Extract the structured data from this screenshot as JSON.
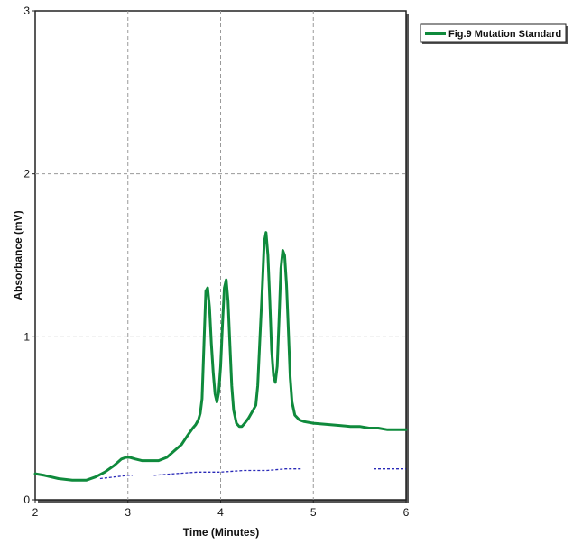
{
  "chart_data": {
    "type": "line",
    "title": "",
    "xlabel": "Time (Minutes)",
    "ylabel": "Absorbance (mV)",
    "xlim": [
      2,
      6
    ],
    "ylim": [
      0,
      3
    ],
    "x_ticks": [
      {
        "value": 2,
        "label": "2"
      },
      {
        "value": 3,
        "label": "3"
      },
      {
        "value": 4,
        "label": "4"
      },
      {
        "value": 5,
        "label": "5"
      },
      {
        "value": 6,
        "label": "6"
      }
    ],
    "y_ticks": [
      {
        "value": 0,
        "label": "0"
      },
      {
        "value": 1,
        "label": "1"
      },
      {
        "value": 2,
        "label": "2"
      },
      {
        "value": 3,
        "label": "3"
      }
    ],
    "grid": true,
    "legend_position": "top-right, outside plot",
    "series": [
      {
        "name": "Fig.9 Mutation Standard",
        "color": "#0f8a3c",
        "style": "solid",
        "x": [
          2.0,
          2.1,
          2.25,
          2.4,
          2.55,
          2.65,
          2.75,
          2.85,
          2.93,
          2.98,
          3.02,
          3.08,
          3.15,
          3.25,
          3.33,
          3.42,
          3.5,
          3.58,
          3.65,
          3.7,
          3.73,
          3.76,
          3.78,
          3.8,
          3.82,
          3.84,
          3.86,
          3.88,
          3.9,
          3.92,
          3.94,
          3.96,
          3.98,
          4.0,
          4.02,
          4.04,
          4.06,
          4.08,
          4.1,
          4.12,
          4.14,
          4.17,
          4.2,
          4.23,
          4.26,
          4.3,
          4.35,
          4.38,
          4.4,
          4.42,
          4.45,
          4.47,
          4.49,
          4.51,
          4.53,
          4.55,
          4.57,
          4.59,
          4.61,
          4.63,
          4.65,
          4.67,
          4.69,
          4.71,
          4.73,
          4.75,
          4.77,
          4.8,
          4.85,
          4.9,
          5.0,
          5.1,
          5.2,
          5.3,
          5.4,
          5.5,
          5.6,
          5.7,
          5.8,
          5.9,
          6.0
        ],
        "y": [
          0.16,
          0.15,
          0.13,
          0.12,
          0.12,
          0.14,
          0.17,
          0.21,
          0.25,
          0.26,
          0.26,
          0.25,
          0.24,
          0.24,
          0.24,
          0.26,
          0.3,
          0.34,
          0.4,
          0.44,
          0.46,
          0.49,
          0.53,
          0.62,
          0.95,
          1.28,
          1.3,
          1.18,
          0.96,
          0.78,
          0.65,
          0.6,
          0.66,
          0.82,
          1.08,
          1.3,
          1.35,
          1.22,
          0.95,
          0.7,
          0.55,
          0.47,
          0.45,
          0.45,
          0.47,
          0.5,
          0.55,
          0.58,
          0.7,
          0.95,
          1.3,
          1.58,
          1.64,
          1.5,
          1.22,
          0.92,
          0.76,
          0.72,
          0.82,
          1.1,
          1.42,
          1.53,
          1.5,
          1.32,
          1.05,
          0.75,
          0.6,
          0.52,
          0.49,
          0.48,
          0.47,
          0.465,
          0.46,
          0.455,
          0.45,
          0.45,
          0.44,
          0.44,
          0.43,
          0.43,
          0.43
        ]
      },
      {
        "name": "",
        "color": "#2a2ab8",
        "style": "dashed",
        "segments": [
          {
            "x": [
              2.7,
              2.85,
              3.0,
              3.05
            ],
            "y": [
              0.13,
              0.14,
              0.15,
              0.15
            ]
          },
          {
            "x": [
              3.28,
              3.5,
              3.75,
              4.0,
              4.25,
              4.5,
              4.7,
              4.88
            ],
            "y": [
              0.15,
              0.16,
              0.17,
              0.17,
              0.18,
              0.18,
              0.19,
              0.19
            ]
          },
          {
            "x": [
              5.65,
              5.8,
              6.0
            ],
            "y": [
              0.19,
              0.19,
              0.19
            ]
          }
        ]
      }
    ]
  }
}
